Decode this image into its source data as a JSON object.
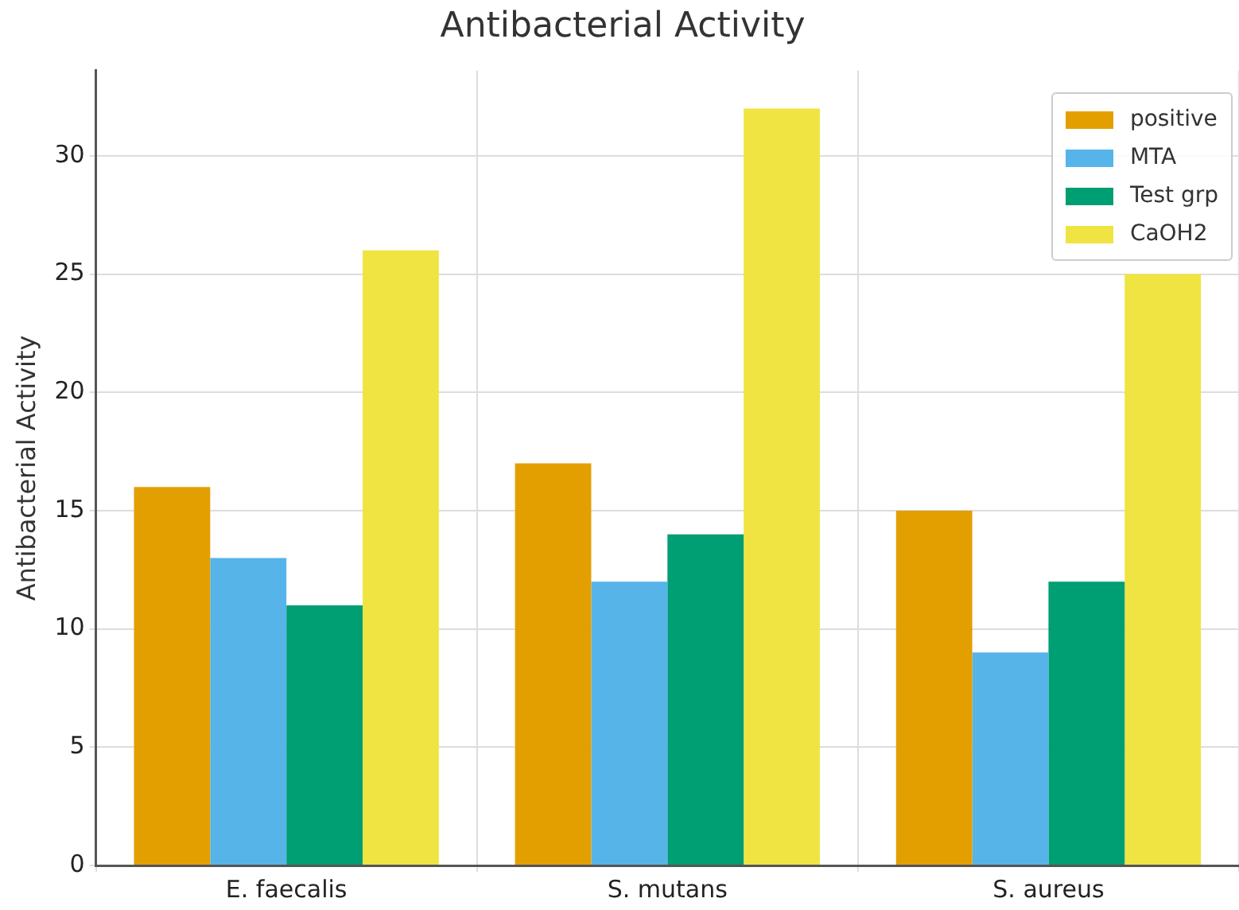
{
  "chart_data": {
    "type": "bar",
    "title": "Antibacterial Activity",
    "ylabel": "Antibacterial Activity",
    "categories": [
      "E. faecalis",
      "S. mutans",
      "S. aureus"
    ],
    "series": [
      {
        "name": "positive",
        "color": "#e39f00",
        "values": [
          16,
          17,
          15
        ]
      },
      {
        "name": "MTA",
        "color": "#56b4e9",
        "values": [
          13,
          12,
          9
        ]
      },
      {
        "name": "Test grp",
        "color": "#009e73",
        "values": [
          11,
          14,
          12
        ]
      },
      {
        "name": "CaOH2",
        "color": "#f0e442",
        "values": [
          26,
          32,
          25
        ]
      }
    ],
    "ylim": [
      0,
      33.6
    ],
    "yticks": [
      0,
      5,
      10,
      15,
      20,
      25,
      30
    ],
    "grid": true,
    "legend": "top right"
  }
}
